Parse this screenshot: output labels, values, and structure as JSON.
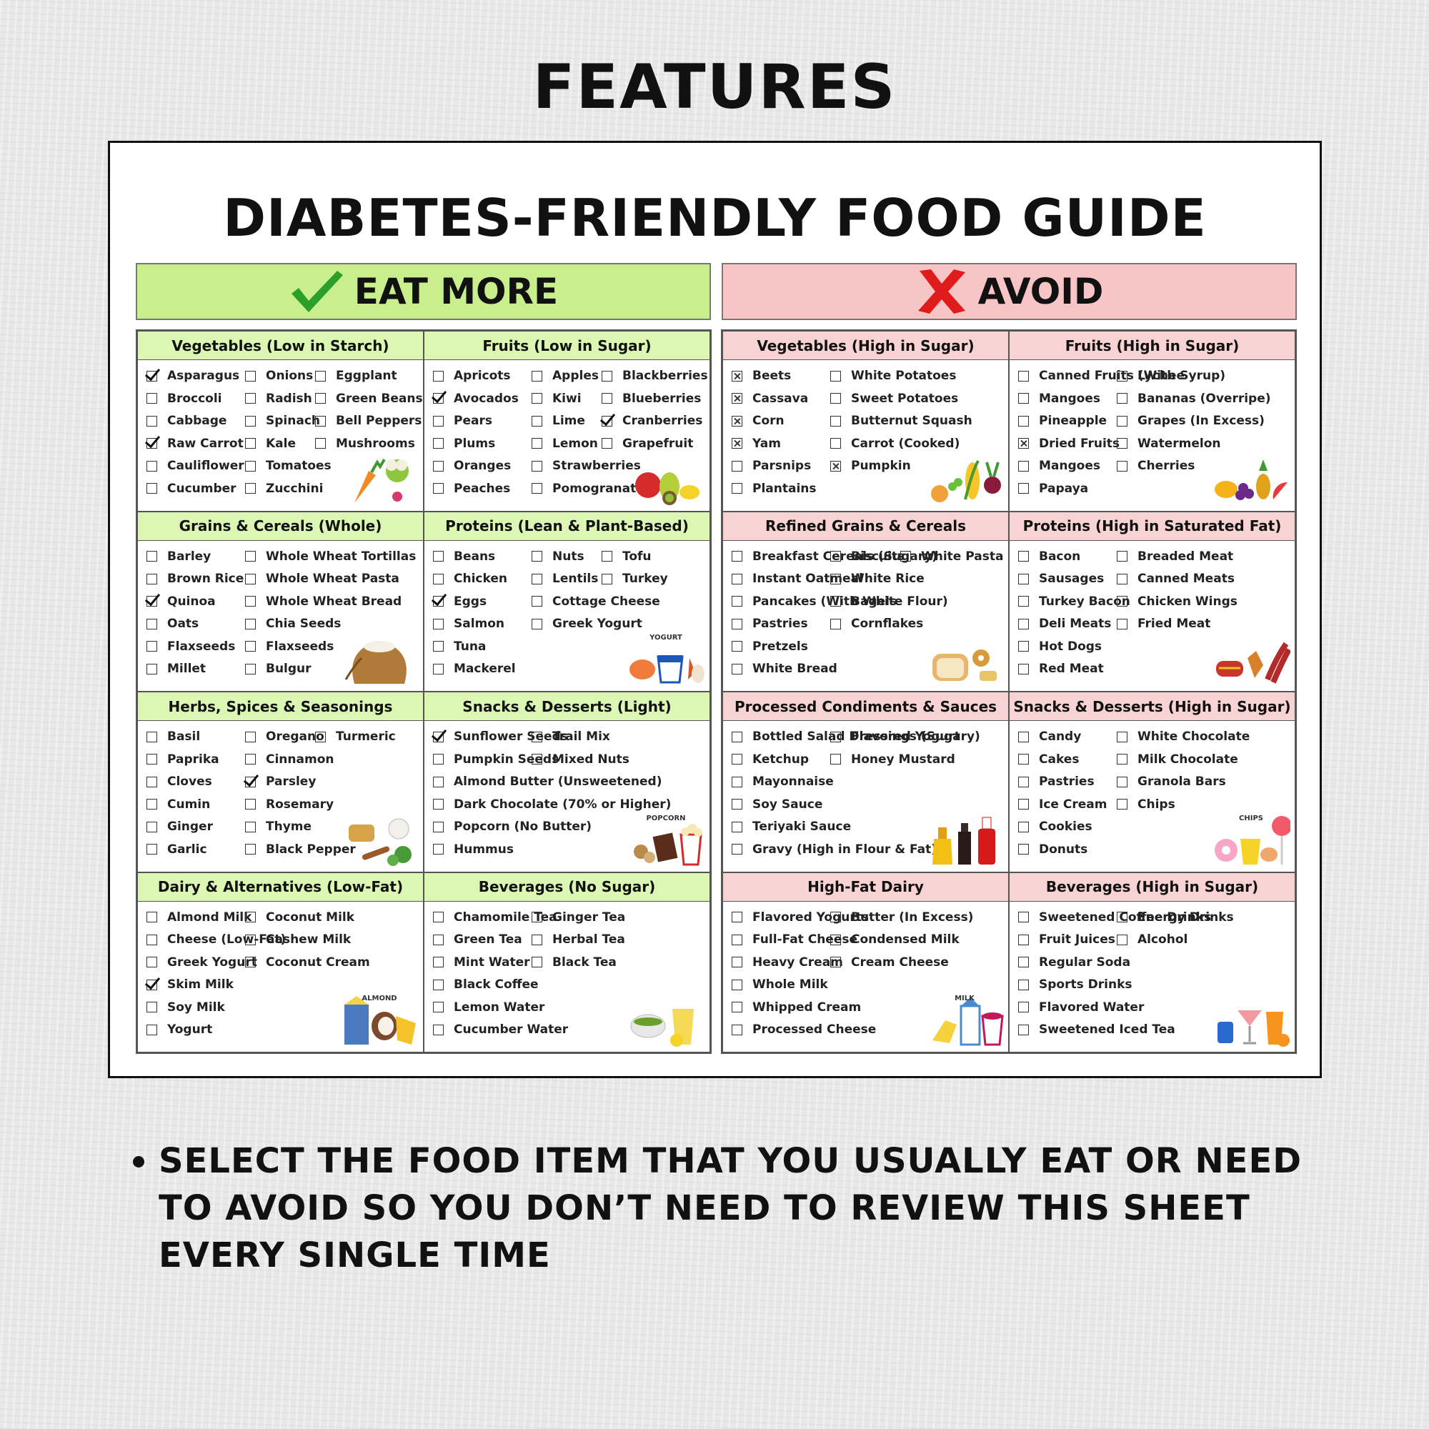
{
  "page_title": "FEATURES",
  "sheet_title": "DIABETES-FRIENDLY FOOD GUIDE",
  "eat_banner": "EAT MORE",
  "avoid_banner": "AVOID",
  "note_text": "SELECT THE FOOD ITEM THAT YOU USUALLY EAT OR NEED TO AVOID SO YOU DON’T NEED TO REVIEW THIS SHEET EVERY SINGLE TIME",
  "colors": {
    "eat_green": "#c9ef8d",
    "avoid_red": "#f7c5c5",
    "check_green": "#2aa02a",
    "cross_red": "#e01b1b"
  },
  "eat_more": [
    {
      "title": "Vegetables (Low in Starch)",
      "icon": "vegetables-icon",
      "columns": [
        [
          {
            "t": "Asparagus",
            "s": "checked"
          },
          {
            "t": "Broccoli"
          },
          {
            "t": "Cabbage"
          },
          {
            "t": "Raw Carrot",
            "s": "checked"
          },
          {
            "t": "Cauliflower"
          },
          {
            "t": "Cucumber"
          }
        ],
        [
          {
            "t": "Onions"
          },
          {
            "t": "Radish"
          },
          {
            "t": "Spinach"
          },
          {
            "t": "Kale"
          },
          {
            "t": "Tomatoes"
          },
          {
            "t": "Zucchini"
          }
        ],
        [
          {
            "t": "Eggplant"
          },
          {
            "t": "Green Beans"
          },
          {
            "t": "Bell Peppers"
          },
          {
            "t": "Mushrooms"
          }
        ]
      ]
    },
    {
      "title": "Fruits (Low in Sugar)",
      "icon": "fruits-icon",
      "columns": [
        [
          {
            "t": "Apricots"
          },
          {
            "t": "Avocados",
            "s": "checked"
          },
          {
            "t": "Pears"
          },
          {
            "t": "Plums"
          },
          {
            "t": "Oranges"
          },
          {
            "t": "Peaches"
          }
        ],
        [
          {
            "t": "Apples"
          },
          {
            "t": "Kiwi"
          },
          {
            "t": "Lime"
          },
          {
            "t": "Lemon"
          },
          {
            "t": "Strawberries"
          },
          {
            "t": "Pomogranates"
          }
        ],
        [
          {
            "t": "Blackberries"
          },
          {
            "t": "Blueberries"
          },
          {
            "t": "Cranberries",
            "s": "checked"
          },
          {
            "t": "Grapefruit"
          }
        ]
      ]
    },
    {
      "title": "Grains & Cereals (Whole)",
      "icon": "grain-sack-icon",
      "columns": [
        [
          {
            "t": "Barley"
          },
          {
            "t": "Brown Rice"
          },
          {
            "t": "Quinoa",
            "s": "checked"
          },
          {
            "t": "Oats"
          },
          {
            "t": "Flaxseeds"
          },
          {
            "t": "Millet"
          }
        ],
        [
          {
            "t": "Whole Wheat Tortillas"
          },
          {
            "t": "Whole Wheat Pasta"
          },
          {
            "t": "Whole Wheat Bread"
          },
          {
            "t": "Chia Seeds"
          },
          {
            "t": "Flaxseeds"
          },
          {
            "t": "Bulgur"
          }
        ]
      ]
    },
    {
      "title": "Proteins (Lean & Plant-Based)",
      "icon": "yogurt-icon",
      "icon_label": "YOGURT",
      "columns": [
        [
          {
            "t": "Beans"
          },
          {
            "t": "Chicken"
          },
          {
            "t": "Eggs",
            "s": "checked"
          },
          {
            "t": "Salmon"
          },
          {
            "t": "Tuna"
          },
          {
            "t": "Mackerel"
          }
        ],
        [
          {
            "t": "Nuts"
          },
          {
            "t": "Lentils"
          },
          {
            "t": "Cottage Cheese"
          },
          {
            "t": "Greek Yogurt"
          }
        ],
        [
          {
            "t": "Tofu"
          },
          {
            "t": "Turkey"
          }
        ]
      ]
    },
    {
      "title": "Herbs, Spices & Seasonings",
      "icon": "herbs-icon",
      "columns": [
        [
          {
            "t": "Basil"
          },
          {
            "t": "Paprika"
          },
          {
            "t": "Cloves"
          },
          {
            "t": "Cumin"
          },
          {
            "t": "Ginger"
          },
          {
            "t": "Garlic"
          }
        ],
        [
          {
            "t": "Oregano"
          },
          {
            "t": "Cinnamon"
          },
          {
            "t": "Parsley",
            "s": "checked"
          },
          {
            "t": "Rosemary"
          },
          {
            "t": "Thyme"
          },
          {
            "t": "Black Pepper"
          }
        ],
        [
          {
            "t": "Turmeric"
          }
        ]
      ]
    },
    {
      "title": "Snacks & Desserts (Light)",
      "icon": "popcorn-icon",
      "icon_label": "POPCORN",
      "columns": [
        [
          {
            "t": "Sunflower Seeds",
            "s": "checked"
          },
          {
            "t": "Pumpkin Seeds"
          },
          {
            "t": "Almond Butter (Unsweetened)"
          },
          {
            "t": "Dark Chocolate (70% or Higher)"
          },
          {
            "t": "Popcorn (No Butter)"
          },
          {
            "t": "Hummus"
          }
        ],
        [
          {
            "t": "Trail Mix"
          },
          {
            "t": "Mixed Nuts"
          }
        ]
      ]
    },
    {
      "title": "Dairy & Alternatives (Low-Fat)",
      "icon": "almond-milk-icon",
      "icon_label": "ALMOND",
      "columns": [
        [
          {
            "t": "Almond Milk"
          },
          {
            "t": "Cheese (Low-Fat)"
          },
          {
            "t": "Greek Yogurt"
          },
          {
            "t": "Skim Milk",
            "s": "checked"
          },
          {
            "t": "Soy Milk"
          },
          {
            "t": "Yogurt"
          }
        ],
        [
          {
            "t": "Coconut Milk"
          },
          {
            "t": "Cashew Milk"
          },
          {
            "t": "Coconut Cream"
          }
        ]
      ]
    },
    {
      "title": "Beverages (No Sugar)",
      "icon": "tea-icon",
      "columns": [
        [
          {
            "t": "Chamomile Tea"
          },
          {
            "t": "Green Tea"
          },
          {
            "t": "Mint Water"
          },
          {
            "t": "Black Coffee"
          },
          {
            "t": "Lemon Water"
          },
          {
            "t": "Cucumber Water"
          }
        ],
        [
          {
            "t": "Ginger Tea"
          },
          {
            "t": "Herbal Tea"
          },
          {
            "t": "Black Tea"
          }
        ]
      ]
    }
  ],
  "avoid": [
    {
      "title": "Vegetables (High in Sugar)",
      "icon": "corn-beet-icon",
      "columns": [
        [
          {
            "t": "Beets",
            "s": "crossed"
          },
          {
            "t": "Cassava",
            "s": "crossed"
          },
          {
            "t": "Corn",
            "s": "crossed"
          },
          {
            "t": "Yam",
            "s": "crossed"
          },
          {
            "t": "Parsnips"
          },
          {
            "t": "Plantains"
          }
        ],
        [
          {
            "t": "White Potatoes"
          },
          {
            "t": "Sweet Potatoes"
          },
          {
            "t": "Butternut Squash"
          },
          {
            "t": "Carrot (Cooked)"
          },
          {
            "t": "Pumpkin",
            "s": "crossed"
          }
        ]
      ]
    },
    {
      "title": "Fruits (High in Sugar)",
      "icon": "tropical-fruits-icon",
      "columns": [
        [
          {
            "t": "Canned Fruits (With Syrup)"
          },
          {
            "t": "Mangoes"
          },
          {
            "t": "Pineapple"
          },
          {
            "t": "Dried Fruits",
            "s": "crossed"
          },
          {
            "t": "Mangoes"
          },
          {
            "t": "Papaya"
          }
        ],
        [
          {
            "t": "Lychee"
          },
          {
            "t": "Bananas (Overripe)"
          },
          {
            "t": "Grapes (In Excess)"
          },
          {
            "t": "Watermelon"
          },
          {
            "t": "Cherries"
          }
        ]
      ]
    },
    {
      "title": "Refined Grains & Cereals",
      "icon": "bread-icon",
      "columns": [
        [
          {
            "t": "Breakfast Cereals (Sugary)"
          },
          {
            "t": "Instant Oatmeal"
          },
          {
            "t": "Pancakes (With White Flour)"
          },
          {
            "t": "Pastries"
          },
          {
            "t": "Pretzels"
          },
          {
            "t": "White Bread"
          }
        ],
        [
          {
            "t": "Biscuits"
          },
          {
            "t": "White Rice"
          },
          {
            "t": "Bagels"
          },
          {
            "t": "Cornflakes"
          }
        ],
        [
          {
            "t": "White Pasta"
          }
        ]
      ]
    },
    {
      "title": "Proteins (High in Saturated Fat)",
      "icon": "bacon-icon",
      "columns": [
        [
          {
            "t": "Bacon"
          },
          {
            "t": "Sausages"
          },
          {
            "t": "Turkey Bacon"
          },
          {
            "t": "Deli Meats"
          },
          {
            "t": "Hot Dogs"
          },
          {
            "t": "Red Meat"
          }
        ],
        [
          {
            "t": "Breaded Meat"
          },
          {
            "t": "Canned Meats"
          },
          {
            "t": "Chicken Wings"
          },
          {
            "t": "Fried Meat"
          }
        ]
      ]
    },
    {
      "title": "Processed Condiments & Sauces",
      "icon": "sauce-bottles-icon",
      "columns": [
        [
          {
            "t": "Bottled Salad Dressings (Sugary)"
          },
          {
            "t": "Ketchup"
          },
          {
            "t": "Mayonnaise"
          },
          {
            "t": "Soy Sauce"
          },
          {
            "t": "Teriyaki Sauce"
          },
          {
            "t": "Gravy (High in Flour & Fat)"
          }
        ],
        [
          {
            "t": "Flavored Yogurt"
          },
          {
            "t": "Honey Mustard"
          }
        ]
      ]
    },
    {
      "title": "Snacks & Desserts (High in Sugar)",
      "icon": "candy-icon",
      "icon_label": "CHIPS",
      "columns": [
        [
          {
            "t": "Candy"
          },
          {
            "t": "Cakes"
          },
          {
            "t": "Pastries"
          },
          {
            "t": "Ice Cream"
          },
          {
            "t": "Cookies"
          },
          {
            "t": "Donuts"
          }
        ],
        [
          {
            "t": "White Chocolate"
          },
          {
            "t": "Milk Chocolate"
          },
          {
            "t": "Granola Bars"
          },
          {
            "t": "Chips"
          }
        ]
      ]
    },
    {
      "title": "High-Fat Dairy",
      "icon": "milk-carton-icon",
      "icon_label": "MILK",
      "columns": [
        [
          {
            "t": "Flavored Yogurts"
          },
          {
            "t": "Full-Fat Cheese"
          },
          {
            "t": "Heavy Cream"
          },
          {
            "t": "Whole Milk"
          },
          {
            "t": "Whipped Cream"
          },
          {
            "t": "Processed Cheese"
          }
        ],
        [
          {
            "t": "Butter (In Excess)"
          },
          {
            "t": "Condensed Milk"
          },
          {
            "t": "Cream Cheese"
          }
        ]
      ]
    },
    {
      "title": "Beverages (High in Sugar)",
      "icon": "cocktail-icon",
      "columns": [
        [
          {
            "t": "Sweetened Coffee Drinks"
          },
          {
            "t": "Fruit Juices"
          },
          {
            "t": "Regular Soda"
          },
          {
            "t": "Sports Drinks"
          },
          {
            "t": "Flavored Water"
          },
          {
            "t": "Sweetened Iced Tea"
          }
        ],
        [
          {
            "t": "Energy Drinks"
          },
          {
            "t": "Alcohol"
          }
        ]
      ]
    }
  ]
}
